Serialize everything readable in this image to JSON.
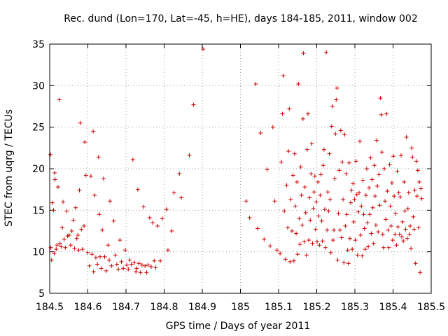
{
  "chart_data": {
    "type": "scatter",
    "title": "Rec. dund (Lon=170, Lat=-45, h=HE), days 184-185, 2011, window 002",
    "xlabel": "GPS time / Days of year 2011",
    "ylabel": "STEC from uqrg / TECUs",
    "xlim": [
      184.5,
      185.5
    ],
    "ylim": [
      5,
      35
    ],
    "xticks": [
      "184.5",
      "184.6",
      "184.7",
      "184.8",
      "184.9",
      "185",
      "185.1",
      "185.2",
      "185.3",
      "185.4",
      "185.5"
    ],
    "yticks": [
      "5",
      "10",
      "15",
      "20",
      "25",
      "30",
      "35"
    ],
    "grid": true,
    "marker": "+",
    "color": "#cc0000",
    "series": [
      {
        "name": "STEC",
        "points": [
          [
            184.502,
            21.7
          ],
          [
            184.503,
            10.5
          ],
          [
            184.505,
            9.0
          ],
          [
            184.507,
            15.9
          ],
          [
            184.51,
            15.0
          ],
          [
            184.512,
            9.8
          ],
          [
            184.513,
            19.5
          ],
          [
            184.514,
            18.7
          ],
          [
            184.517,
            10.3
          ],
          [
            184.519,
            10.8
          ],
          [
            184.522,
            17.8
          ],
          [
            184.525,
            28.3
          ],
          [
            184.527,
            11.0
          ],
          [
            184.53,
            10.6
          ],
          [
            184.533,
            12.9
          ],
          [
            184.535,
            16.0
          ],
          [
            184.538,
            11.5
          ],
          [
            184.541,
            10.5
          ],
          [
            184.545,
            14.9
          ],
          [
            184.547,
            11.9
          ],
          [
            184.551,
            12.0
          ],
          [
            184.555,
            10.8
          ],
          [
            184.558,
            12.5
          ],
          [
            184.562,
            13.8
          ],
          [
            184.565,
            10.4
          ],
          [
            184.568,
            15.3
          ],
          [
            184.571,
            11.6
          ],
          [
            184.574,
            12.0
          ],
          [
            184.576,
            10.2
          ],
          [
            184.578,
            17.4
          ],
          [
            184.58,
            25.5
          ],
          [
            184.583,
            12.7
          ],
          [
            184.586,
            10.3
          ],
          [
            184.59,
            13.1
          ],
          [
            184.592,
            23.2
          ],
          [
            184.595,
            19.2
          ],
          [
            184.6,
            9.9
          ],
          [
            184.604,
            8.3
          ],
          [
            184.608,
            19.1
          ],
          [
            184.611,
            9.7
          ],
          [
            184.614,
            24.5
          ],
          [
            184.615,
            7.6
          ],
          [
            184.618,
            16.8
          ],
          [
            184.621,
            9.3
          ],
          [
            184.625,
            8.5
          ],
          [
            184.628,
            21.4
          ],
          [
            184.63,
            14.5
          ],
          [
            184.632,
            9.4
          ],
          [
            184.635,
            8.0
          ],
          [
            184.638,
            12.6
          ],
          [
            184.641,
            18.8
          ],
          [
            184.644,
            9.4
          ],
          [
            184.648,
            7.7
          ],
          [
            184.653,
            10.8
          ],
          [
            184.656,
            9.0
          ],
          [
            184.658,
            16.1
          ],
          [
            184.662,
            8.3
          ],
          [
            184.668,
            13.7
          ],
          [
            184.672,
            9.6
          ],
          [
            184.676,
            8.5
          ],
          [
            184.68,
            7.9
          ],
          [
            184.684,
            11.4
          ],
          [
            184.688,
            8.8
          ],
          [
            184.693,
            8.0
          ],
          [
            184.698,
            10.2
          ],
          [
            184.702,
            8.4
          ],
          [
            184.706,
            7.9
          ],
          [
            184.71,
            9.0
          ],
          [
            184.714,
            8.5
          ],
          [
            184.718,
            21.1
          ],
          [
            184.722,
            8.7
          ],
          [
            184.726,
            7.6
          ],
          [
            184.728,
            8.0
          ],
          [
            184.731,
            17.5
          ],
          [
            184.734,
            8.6
          ],
          [
            184.738,
            7.5
          ],
          [
            184.742,
            8.4
          ],
          [
            184.746,
            15.4
          ],
          [
            184.75,
            8.3
          ],
          [
            184.754,
            7.5
          ],
          [
            184.758,
            8.4
          ],
          [
            184.762,
            14.1
          ],
          [
            184.766,
            8.2
          ],
          [
            184.77,
            13.5
          ],
          [
            184.774,
            8.9
          ],
          [
            184.778,
            8.1
          ],
          [
            184.783,
            13.1
          ],
          [
            184.79,
            8.9
          ],
          [
            184.795,
            14.0
          ],
          [
            184.806,
            15.1
          ],
          [
            184.81,
            10.2
          ],
          [
            184.82,
            12.5
          ],
          [
            184.826,
            17.1
          ],
          [
            184.84,
            19.4
          ],
          [
            184.845,
            16.5
          ],
          [
            184.866,
            21.6
          ],
          [
            184.877,
            27.7
          ],
          [
            184.902,
            34.4
          ],
          [
            185.015,
            16.1
          ],
          [
            185.024,
            14.1
          ],
          [
            185.04,
            30.2
          ],
          [
            185.045,
            12.8
          ],
          [
            185.053,
            24.3
          ],
          [
            185.062,
            11.5
          ],
          [
            185.07,
            19.9
          ],
          [
            185.078,
            10.7
          ],
          [
            185.085,
            25.0
          ],
          [
            185.09,
            16.1
          ],
          [
            185.096,
            10.2
          ],
          [
            185.104,
            9.8
          ],
          [
            185.107,
            20.8
          ],
          [
            185.11,
            26.6
          ],
          [
            185.112,
            31.2
          ],
          [
            185.115,
            14.9
          ],
          [
            185.118,
            9.1
          ],
          [
            185.121,
            18.0
          ],
          [
            185.124,
            12.9
          ],
          [
            185.126,
            22.1
          ],
          [
            185.128,
            27.2
          ],
          [
            185.13,
            8.8
          ],
          [
            185.132,
            16.3
          ],
          [
            185.135,
            12.5
          ],
          [
            185.138,
            19.2
          ],
          [
            185.14,
            8.9
          ],
          [
            185.142,
            21.8
          ],
          [
            185.144,
            15.5
          ],
          [
            185.146,
            12.2
          ],
          [
            185.148,
            18.4
          ],
          [
            185.15,
            9.7
          ],
          [
            185.152,
            30.2
          ],
          [
            185.154,
            14.0
          ],
          [
            185.156,
            10.9
          ],
          [
            185.158,
            20.2
          ],
          [
            185.16,
            16.8
          ],
          [
            185.162,
            13.2
          ],
          [
            185.164,
            26.0
          ],
          [
            185.165,
            33.9
          ],
          [
            185.167,
            11.2
          ],
          [
            185.169,
            17.8
          ],
          [
            185.171,
            14.7
          ],
          [
            185.173,
            9.6
          ],
          [
            185.175,
            22.3
          ],
          [
            185.177,
            26.6
          ],
          [
            185.179,
            11.4
          ],
          [
            185.181,
            16.5
          ],
          [
            185.183,
            13.8
          ],
          [
            185.185,
            19.4
          ],
          [
            185.187,
            23.0
          ],
          [
            185.189,
            11.0
          ],
          [
            185.191,
            15.2
          ],
          [
            185.193,
            17.2
          ],
          [
            185.195,
            19.1
          ],
          [
            185.197,
            12.7
          ],
          [
            185.199,
            16.0
          ],
          [
            185.201,
            11.2
          ],
          [
            185.203,
            18.4
          ],
          [
            185.205,
            14.3
          ],
          [
            185.207,
            10.8
          ],
          [
            185.209,
            16.8
          ],
          [
            185.211,
            19.3
          ],
          [
            185.213,
            13.7
          ],
          [
            185.215,
            11.3
          ],
          [
            185.217,
            20.4
          ],
          [
            185.219,
            22.3
          ],
          [
            185.221,
            15.1
          ],
          [
            185.223,
            10.5
          ],
          [
            185.225,
            34.0
          ],
          [
            185.227,
            12.6
          ],
          [
            185.229,
            17.2
          ],
          [
            185.231,
            14.9
          ],
          [
            185.233,
            21.8
          ],
          [
            185.235,
            16.3
          ],
          [
            185.237,
            9.9
          ],
          [
            185.239,
            25.1
          ],
          [
            185.241,
            27.5
          ],
          [
            185.243,
            11.4
          ],
          [
            185.245,
            12.6
          ],
          [
            185.247,
            18.8
          ],
          [
            185.249,
            24.2
          ],
          [
            185.251,
            28.3
          ],
          [
            185.253,
            29.7
          ],
          [
            185.255,
            9.0
          ],
          [
            185.257,
            14.6
          ],
          [
            185.259,
            19.8
          ],
          [
            185.261,
            12.6
          ],
          [
            185.263,
            24.6
          ],
          [
            185.265,
            11.7
          ],
          [
            185.267,
            20.8
          ],
          [
            185.269,
            16.3
          ],
          [
            185.271,
            8.7
          ],
          [
            185.273,
            24.1
          ],
          [
            185.275,
            13.1
          ],
          [
            185.277,
            19.4
          ],
          [
            185.279,
            14.5
          ],
          [
            185.281,
            10.2
          ],
          [
            185.283,
            8.6
          ],
          [
            185.285,
            20.7
          ],
          [
            185.287,
            11.6
          ],
          [
            185.289,
            15.9
          ],
          [
            185.291,
            17.4
          ],
          [
            185.293,
            10.3
          ],
          [
            185.295,
            18.2
          ],
          [
            185.297,
            13.6
          ],
          [
            185.299,
            16.3
          ],
          [
            185.301,
            11.4
          ],
          [
            185.303,
            20.9
          ],
          [
            185.305,
            16.9
          ],
          [
            185.307,
            9.6
          ],
          [
            185.309,
            14.8
          ],
          [
            185.311,
            17.1
          ],
          [
            185.313,
            23.3
          ],
          [
            185.315,
            12.0
          ],
          [
            185.317,
            15.5
          ],
          [
            185.319,
            9.5
          ],
          [
            185.321,
            18.6
          ],
          [
            185.323,
            14.5
          ],
          [
            185.325,
            12.8
          ],
          [
            185.327,
            10.3
          ],
          [
            185.329,
            16.8
          ],
          [
            185.331,
            20.0
          ],
          [
            185.333,
            13.5
          ],
          [
            185.335,
            10.6
          ],
          [
            185.337,
            17.7
          ],
          [
            185.339,
            14.5
          ],
          [
            185.341,
            21.3
          ],
          [
            185.343,
            12.2
          ],
          [
            185.345,
            18.7
          ],
          [
            185.347,
            15.3
          ],
          [
            185.349,
            11.0
          ],
          [
            185.351,
            20.4
          ],
          [
            185.353,
            16.7
          ],
          [
            185.355,
            13.2
          ],
          [
            185.357,
            23.4
          ],
          [
            185.359,
            17.9
          ],
          [
            185.361,
            12.4
          ],
          [
            185.363,
            19.3
          ],
          [
            185.365,
            15.6
          ],
          [
            185.367,
            28.5
          ],
          [
            185.369,
            26.5
          ],
          [
            185.371,
            22.0
          ],
          [
            185.373,
            12.1
          ],
          [
            185.375,
            10.5
          ],
          [
            185.377,
            20.0
          ],
          [
            185.379,
            16.1
          ],
          [
            185.381,
            13.9
          ],
          [
            185.383,
            26.6
          ],
          [
            185.385,
            17.3
          ],
          [
            185.387,
            12.6
          ],
          [
            185.389,
            10.5
          ],
          [
            185.391,
            20.5
          ],
          [
            185.393,
            15.5
          ],
          [
            185.395,
            13.1
          ],
          [
            185.397,
            18.3
          ],
          [
            185.399,
            11.4
          ],
          [
            185.401,
            21.5
          ],
          [
            185.403,
            16.7
          ],
          [
            185.405,
            12.1
          ],
          [
            185.407,
            14.6
          ],
          [
            185.409,
            10.8
          ],
          [
            185.411,
            19.7
          ],
          [
            185.413,
            13.0
          ],
          [
            185.415,
            17.1
          ],
          [
            185.417,
            12.1
          ],
          [
            185.419,
            16.6
          ],
          [
            185.421,
            21.6
          ],
          [
            185.423,
            11.8
          ],
          [
            185.425,
            13.6
          ],
          [
            185.427,
            11.3
          ],
          [
            185.429,
            18.4
          ],
          [
            185.431,
            14.9
          ],
          [
            185.433,
            12.7
          ],
          [
            185.435,
            23.8
          ],
          [
            185.437,
            11.6
          ],
          [
            185.439,
            15.2
          ],
          [
            185.441,
            17.1
          ],
          [
            185.443,
            12.1
          ],
          [
            185.445,
            13.1
          ],
          [
            185.447,
            10.4
          ],
          [
            185.449,
            22.5
          ],
          [
            185.451,
            21.4
          ],
          [
            185.453,
            14.2
          ],
          [
            185.455,
            12.7
          ],
          [
            185.457,
            17.4
          ],
          [
            185.459,
            8.6
          ],
          [
            185.461,
            20.9
          ],
          [
            185.463,
            16.7
          ],
          [
            185.465,
            19.8
          ],
          [
            185.467,
            12.9
          ],
          [
            185.469,
            18.4
          ],
          [
            185.471,
            7.5
          ],
          [
            185.473,
            17.6
          ],
          [
            185.475,
            16.4
          ]
        ]
      }
    ]
  }
}
